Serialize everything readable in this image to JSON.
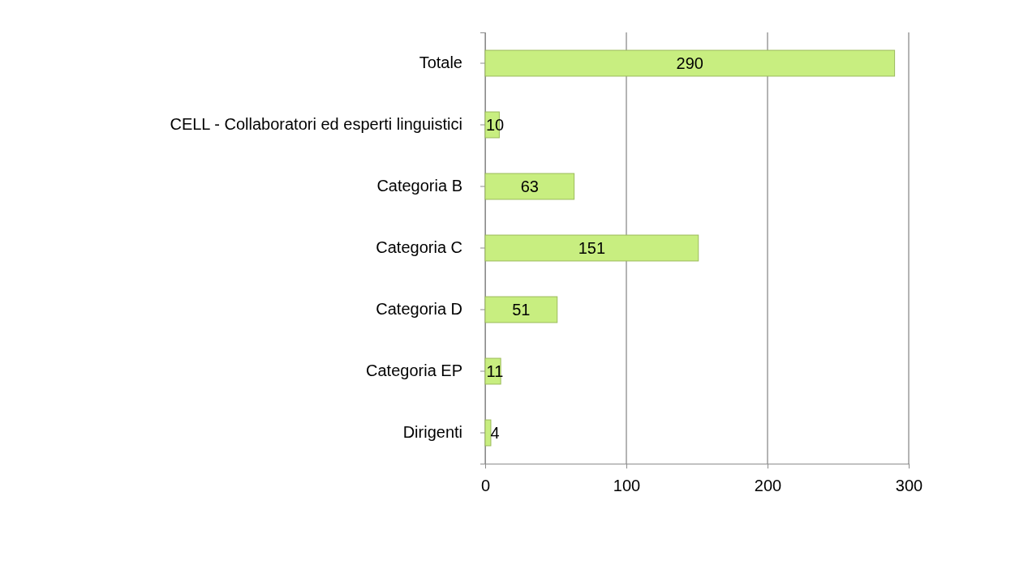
{
  "chart_data": {
    "type": "bar",
    "orientation": "horizontal",
    "categories": [
      "Totale",
      "CELL - Collaboratori ed esperti linguistici",
      "Categoria B",
      "Categoria C",
      "Categoria D",
      "Categoria EP",
      "Dirigenti"
    ],
    "values": [
      290,
      10,
      63,
      151,
      51,
      11,
      4
    ],
    "color": "#c8ee80",
    "xlim": [
      0,
      300
    ],
    "xticks": [
      0,
      100,
      200,
      300
    ],
    "grid": "x",
    "data_labels": true
  }
}
